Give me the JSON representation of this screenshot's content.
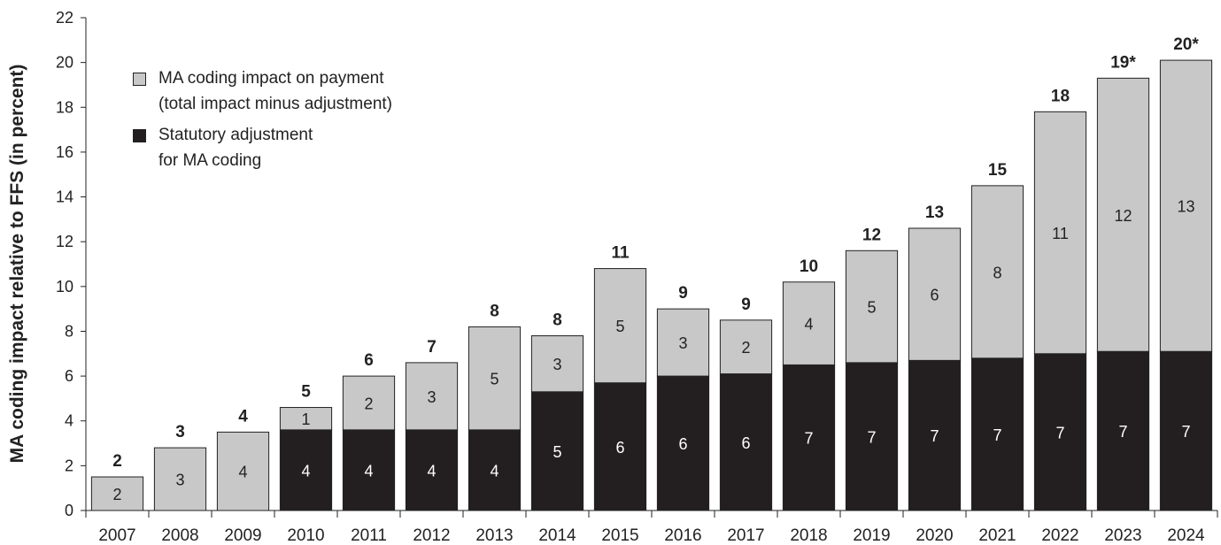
{
  "chart_data": {
    "type": "stacked-bar",
    "y_label": "MA coding impact relative to FFS (in percent)",
    "categories": [
      "2007",
      "2008",
      "2009",
      "2010",
      "2011",
      "2012",
      "2013",
      "2014",
      "2015",
      "2016",
      "2017",
      "2018",
      "2019",
      "2020",
      "2021",
      "2022",
      "2023",
      "2024"
    ],
    "series": [
      {
        "name": "Statutory adjustment\nfor MA coding",
        "color": "#231f20",
        "values": [
          null,
          null,
          null,
          3.6,
          3.6,
          3.6,
          3.6,
          5.3,
          5.7,
          6.0,
          6.1,
          6.5,
          6.6,
          6.7,
          6.8,
          7.0,
          7.1,
          7.1
        ],
        "value_labels": [
          null,
          null,
          null,
          "4",
          "4",
          "4",
          "4",
          "5",
          "6",
          "6",
          "6",
          "7",
          "7",
          "7",
          "7",
          "7",
          "7",
          "7"
        ]
      },
      {
        "name": "MA coding impact on payment\n(total impact minus adjustment)",
        "color": "#c8c8c8",
        "values": [
          1.5,
          2.8,
          3.5,
          1.0,
          2.4,
          3.0,
          4.6,
          2.5,
          5.1,
          3.0,
          2.4,
          3.7,
          5.0,
          5.9,
          7.7,
          10.8,
          12.2,
          13.0
        ],
        "value_labels": [
          "2",
          "3",
          "4",
          "1",
          "2",
          "3",
          "5",
          "3",
          "5",
          "3",
          "2",
          "4",
          "5",
          "6",
          "8",
          "11",
          "12",
          "13"
        ]
      }
    ],
    "total_labels": [
      "2",
      "3",
      "4",
      "5",
      "6",
      "7",
      "8",
      "8",
      "11",
      "9",
      "9",
      "10",
      "12",
      "13",
      "15",
      "18",
      "19*",
      "20*"
    ],
    "ylim": [
      0,
      22
    ],
    "yticks": [
      0,
      2,
      4,
      6,
      8,
      10,
      12,
      14,
      16,
      18,
      20,
      22
    ],
    "legend": "top-left"
  }
}
